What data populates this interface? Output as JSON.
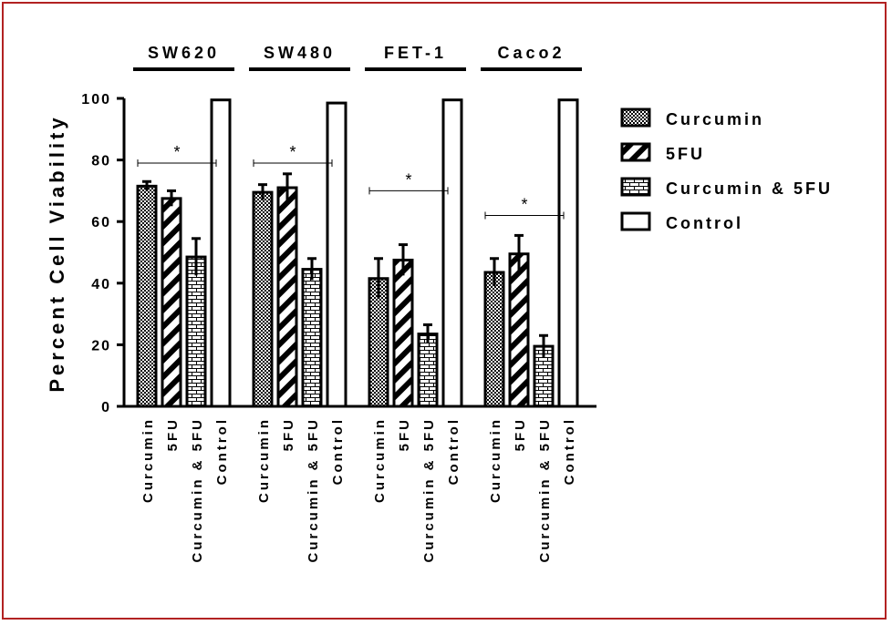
{
  "chart_data": {
    "type": "bar",
    "title": "",
    "ylabel": "Percent Cell Viability",
    "xlabel": "",
    "ylim": [
      0,
      100
    ],
    "yticks": [
      0,
      20,
      40,
      60,
      80,
      100
    ],
    "legend_position": "right",
    "grid": false,
    "treatments": [
      "Curcumin",
      "5FU",
      "Curcumin & 5FU",
      "Control"
    ],
    "patterns": [
      "checker",
      "diagonal-stripes",
      "brick",
      "empty"
    ],
    "groups": [
      {
        "name": "SW620",
        "values": [
          71.5,
          67.5,
          48.5,
          99.5
        ],
        "errors": [
          1.5,
          2.5,
          6,
          0.3
        ],
        "sig_line_y": 79,
        "sig_label": "*"
      },
      {
        "name": "SW480",
        "values": [
          69.5,
          71,
          44.5,
          98.5
        ],
        "errors": [
          2.5,
          4.5,
          3.5,
          0.3
        ],
        "sig_line_y": 79,
        "sig_label": "*"
      },
      {
        "name": "FET-1",
        "values": [
          41.5,
          47.5,
          23.5,
          99.5
        ],
        "errors": [
          6.5,
          5,
          3,
          0.3
        ],
        "sig_line_y": 70,
        "sig_label": "*"
      },
      {
        "name": "Caco2",
        "values": [
          43.5,
          49.5,
          19.5,
          99.5
        ],
        "errors": [
          4.5,
          6,
          3.5,
          0.3
        ],
        "sig_line_y": 62,
        "sig_label": "*"
      }
    ]
  }
}
